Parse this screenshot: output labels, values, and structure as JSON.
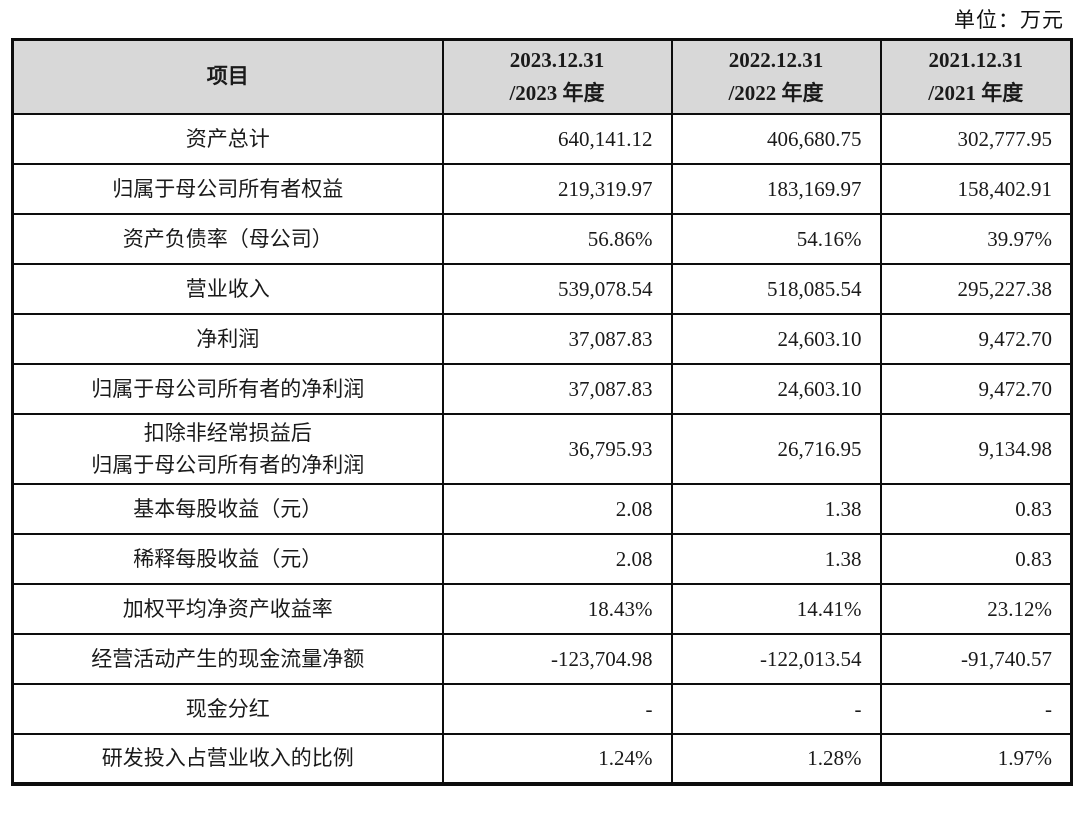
{
  "unit_label": "单位：万元",
  "table": {
    "header": {
      "item_label": "项目",
      "columns": [
        {
          "line1": "2023.12.31",
          "line2": "/2023 年度"
        },
        {
          "line1": "2022.12.31",
          "line2": "/2022 年度"
        },
        {
          "line1": "2021.12.31",
          "line2": "/2021 年度"
        }
      ]
    },
    "rows": [
      {
        "label": [
          "资产总计"
        ],
        "values": [
          "640,141.12",
          "406,680.75",
          "302,777.95"
        ]
      },
      {
        "label": [
          "归属于母公司所有者权益"
        ],
        "values": [
          "219,319.97",
          "183,169.97",
          "158,402.91"
        ]
      },
      {
        "label": [
          "资产负债率（母公司）"
        ],
        "values": [
          "56.86%",
          "54.16%",
          "39.97%"
        ]
      },
      {
        "label": [
          "营业收入"
        ],
        "values": [
          "539,078.54",
          "518,085.54",
          "295,227.38"
        ]
      },
      {
        "label": [
          "净利润"
        ],
        "values": [
          "37,087.83",
          "24,603.10",
          "9,472.70"
        ]
      },
      {
        "label": [
          "归属于母公司所有者的净利润"
        ],
        "values": [
          "37,087.83",
          "24,603.10",
          "9,472.70"
        ]
      },
      {
        "label": [
          "扣除非经常损益后",
          "归属于母公司所有者的净利润"
        ],
        "values": [
          "36,795.93",
          "26,716.95",
          "9,134.98"
        ]
      },
      {
        "label": [
          "基本每股收益（元）"
        ],
        "values": [
          "2.08",
          "1.38",
          "0.83"
        ]
      },
      {
        "label": [
          "稀释每股收益（元）"
        ],
        "values": [
          "2.08",
          "1.38",
          "0.83"
        ]
      },
      {
        "label": [
          "加权平均净资产收益率"
        ],
        "values": [
          "18.43%",
          "14.41%",
          "23.12%"
        ]
      },
      {
        "label": [
          "经营活动产生的现金流量净额"
        ],
        "values": [
          "-123,704.98",
          "-122,013.54",
          "-91,740.57"
        ]
      },
      {
        "label": [
          "现金分红"
        ],
        "values": [
          "-",
          "-",
          "-"
        ]
      },
      {
        "label": [
          "研发投入占营业收入的比例"
        ],
        "values": [
          "1.24%",
          "1.28%",
          "1.97%"
        ]
      }
    ]
  },
  "colors": {
    "header_bg": "#d8d8d8",
    "border": "#0d0d0d",
    "text": "#1a1a1a"
  }
}
